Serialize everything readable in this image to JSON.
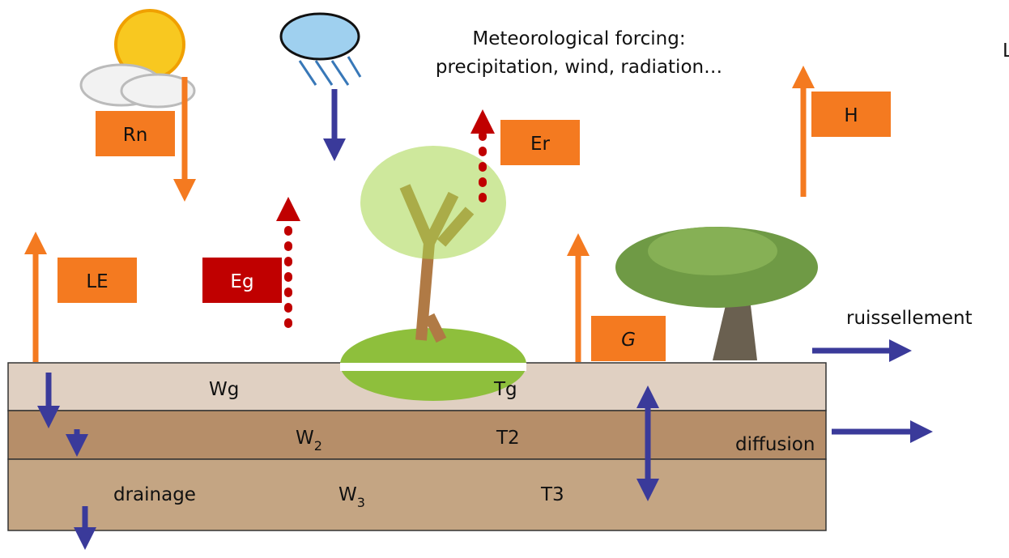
{
  "header": {
    "lines": [
      "Meteorological forcing:",
      "precipitation, wind, radiation…"
    ],
    "corner": "L"
  },
  "fluxes": {
    "rn": "Rn",
    "er": "Er",
    "h": "H",
    "le": "LE",
    "eg": "Eg",
    "g": "G",
    "runoff": "ruissellement",
    "diffusion": "diffusion",
    "drainage": "drainage"
  },
  "layers": {
    "wg": "Wg",
    "tg": "Tg",
    "w2": {
      "base": "W",
      "sub": "2"
    },
    "t2": "T2",
    "w3": {
      "base": "W",
      "sub": "3"
    },
    "t3": "T3"
  }
}
